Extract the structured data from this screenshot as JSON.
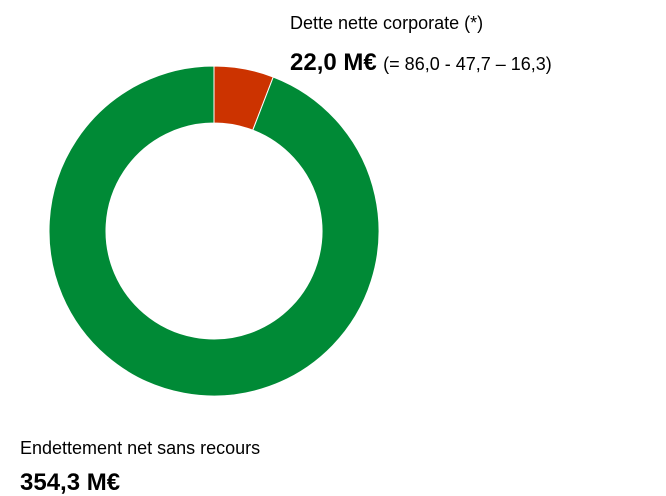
{
  "chart_data": {
    "type": "pie",
    "hole": true,
    "categories": [
      "Dette nette corporate (*)",
      "Endettement net sans recours"
    ],
    "values": [
      22.0,
      354.3
    ],
    "value_labels": [
      "22,0 M€",
      "354,3 M€"
    ],
    "colors": [
      "#cc3300",
      "#008a36"
    ],
    "annotation": "(= 86,0 - 47,7 – 16,3)"
  }
}
